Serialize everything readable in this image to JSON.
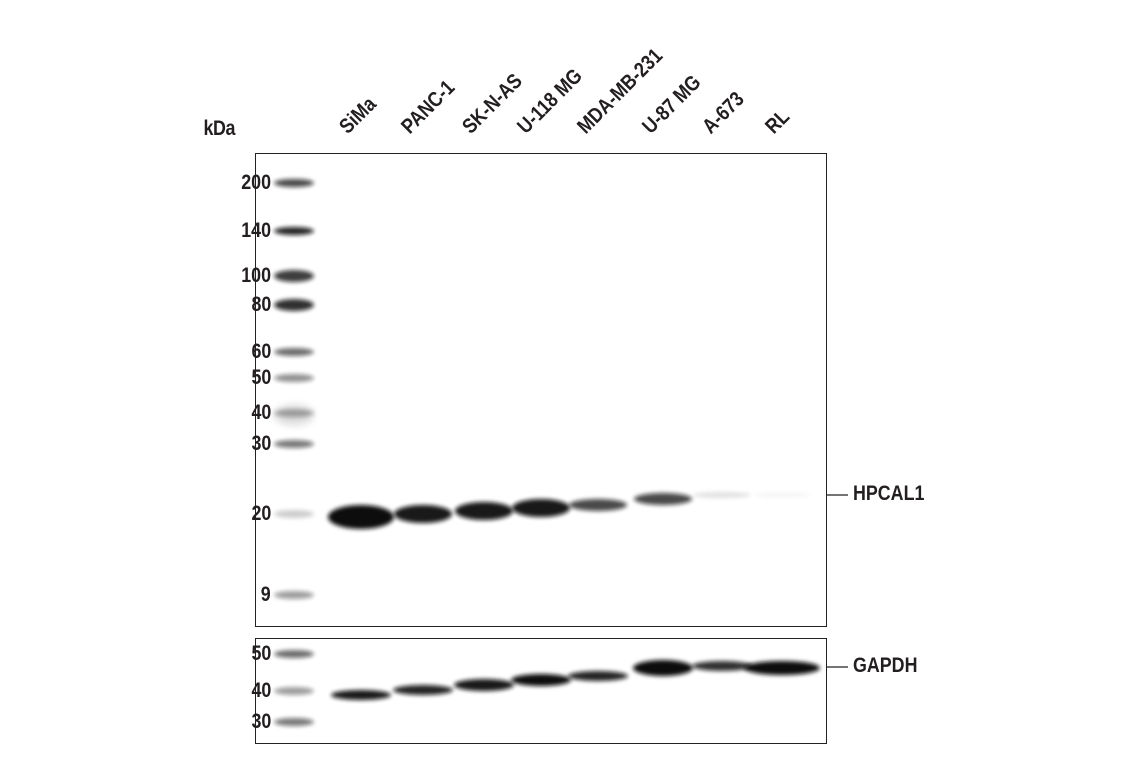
{
  "unit_label": "kDa",
  "lanes": [
    "SiMa",
    "PANC-1",
    "SK-N-AS",
    "U-118 MG",
    "MDA-MB-231",
    "U-87 MG",
    "A-673",
    "RL"
  ],
  "main_panel": {
    "markers": [
      "200",
      "140",
      "100",
      "80",
      "60",
      "50",
      "40",
      "30",
      "20",
      "9"
    ],
    "target": "HPCAL1"
  },
  "control_panel": {
    "markers": [
      "50",
      "40",
      "30"
    ],
    "target": "GAPDH"
  }
}
